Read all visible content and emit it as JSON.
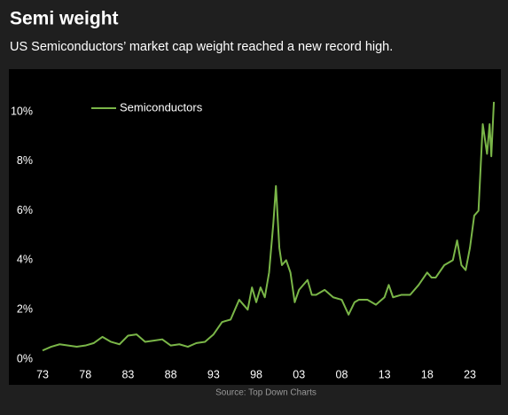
{
  "title": "Semi weight",
  "subtitle": "US Semiconductors’ market cap weight reached a new record high.",
  "chart_data": {
    "type": "line",
    "x": [
      1973,
      1974,
      1975,
      1976,
      1977,
      1978,
      1979,
      1980,
      1981,
      1982,
      1983,
      1984,
      1985,
      1986,
      1987,
      1988,
      1989,
      1990,
      1991,
      1992,
      1993,
      1994,
      1995,
      1996,
      1997,
      1997.5,
      1998,
      1998.5,
      1999,
      1999.5,
      2000,
      2000.3,
      2000.7,
      2001,
      2001.5,
      2002,
      2002.5,
      2003,
      2004,
      2004.5,
      2005,
      2006,
      2007,
      2008,
      2008.8,
      2009.5,
      2010,
      2011,
      2012,
      2013,
      2013.5,
      2014,
      2015,
      2016,
      2017,
      2018,
      2018.5,
      2019,
      2020,
      2021,
      2021.5,
      2022,
      2022.5,
      2023,
      2023.5,
      2024,
      2024.5,
      2025,
      2025.3,
      2025.5,
      2025.8
    ],
    "series": [
      {
        "name": "Semiconductors",
        "color": "#7ab648",
        "values": [
          0.35,
          0.5,
          0.6,
          0.55,
          0.5,
          0.55,
          0.65,
          0.9,
          0.7,
          0.6,
          0.95,
          1.0,
          0.7,
          0.75,
          0.8,
          0.55,
          0.6,
          0.5,
          0.65,
          0.7,
          1.0,
          1.5,
          1.6,
          2.4,
          2.0,
          2.9,
          2.3,
          2.9,
          2.5,
          3.5,
          5.5,
          7.0,
          4.5,
          3.8,
          4.0,
          3.5,
          2.3,
          2.8,
          3.2,
          2.6,
          2.6,
          2.8,
          2.5,
          2.4,
          1.8,
          2.3,
          2.4,
          2.4,
          2.2,
          2.5,
          3.0,
          2.5,
          2.6,
          2.6,
          3.0,
          3.5,
          3.3,
          3.3,
          3.8,
          4.0,
          4.8,
          3.8,
          3.6,
          4.5,
          5.8,
          6.0,
          9.5,
          8.3,
          9.5,
          8.2,
          10.4
        ]
      }
    ],
    "xlim": [
      1972.5,
      2026
    ],
    "xticks": [
      {
        "value": 1973,
        "label": "73"
      },
      {
        "value": 1978,
        "label": "78"
      },
      {
        "value": 1983,
        "label": "83"
      },
      {
        "value": 1988,
        "label": "88"
      },
      {
        "value": 1993,
        "label": "93"
      },
      {
        "value": 1998,
        "label": "98"
      },
      {
        "value": 2003,
        "label": "03"
      },
      {
        "value": 2008,
        "label": "08"
      },
      {
        "value": 2013,
        "label": "13"
      },
      {
        "value": 2018,
        "label": "18"
      },
      {
        "value": 2023,
        "label": "23"
      }
    ],
    "ylim": [
      0,
      10.6
    ],
    "yticks": [
      {
        "value": 0,
        "label": "0%"
      },
      {
        "value": 2,
        "label": "2%"
      },
      {
        "value": 4,
        "label": "4%"
      },
      {
        "value": 6,
        "label": "6%"
      },
      {
        "value": 8,
        "label": "8%"
      },
      {
        "value": 10,
        "label": "10%"
      }
    ],
    "legend": "upper left",
    "source": "Source: Top Down Charts"
  }
}
